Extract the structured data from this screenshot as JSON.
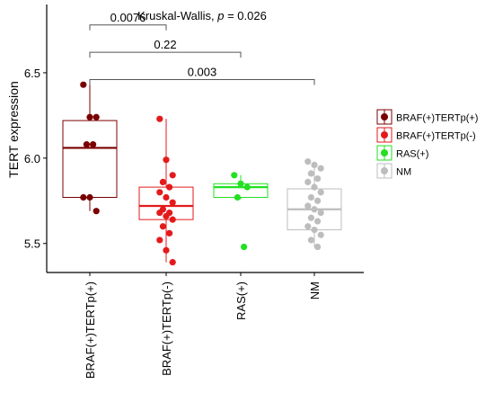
{
  "chart_data": {
    "type": "boxplot",
    "title": "Kruskal-Wallis, p = 0.026",
    "title_parts": {
      "prefix": "Kruskal-Wallis, ",
      "p": "p",
      "suffix": " = 0.026"
    },
    "xlabel": "",
    "ylabel": "TERT expression",
    "ylim": [
      5.33,
      6.9
    ],
    "yticks": [
      5.5,
      6.0,
      6.5
    ],
    "ytick_labels": [
      "5.5",
      "6.0",
      "6.5"
    ],
    "grid": false,
    "legend_position": "right",
    "categories": [
      "BRAF(+)TERTp(+)",
      "BRAF(+)TERTp(-)",
      "RAS(+)",
      "NM"
    ],
    "series": [
      {
        "name": "BRAF(+)TERTp(+)",
        "color": "#7a0000",
        "box": {
          "q1": 5.77,
          "median": 6.06,
          "q3": 6.22,
          "whisker_low": 5.69,
          "whisker_high": 6.43
        },
        "points": [
          6.43,
          6.24,
          6.24,
          6.08,
          6.08,
          5.77,
          5.77,
          5.69
        ]
      },
      {
        "name": "BRAF(+)TERTp(-)",
        "color": "#e31a1c",
        "box": {
          "q1": 5.64,
          "median": 5.72,
          "q3": 5.83,
          "whisker_low": 5.39,
          "whisker_high": 6.23
        },
        "points": [
          6.23,
          5.99,
          5.9,
          5.86,
          5.83,
          5.8,
          5.77,
          5.74,
          5.7,
          5.68,
          5.68,
          5.66,
          5.64,
          5.6,
          5.56,
          5.52,
          5.46,
          5.39
        ]
      },
      {
        "name": "RAS(+)",
        "color": "#22e022",
        "box": {
          "q1": 5.77,
          "median": 5.83,
          "q3": 5.85,
          "whisker_low": 5.76,
          "whisker_high": 5.9
        },
        "points": [
          5.9,
          5.85,
          5.83,
          5.77,
          5.48
        ]
      },
      {
        "name": "NM",
        "color": "#bdbdbd",
        "box": {
          "q1": 5.58,
          "median": 5.7,
          "q3": 5.82,
          "whisker_low": 5.48,
          "whisker_high": 5.98
        },
        "points": [
          5.98,
          5.96,
          5.94,
          5.91,
          5.88,
          5.86,
          5.83,
          5.8,
          5.77,
          5.75,
          5.72,
          5.7,
          5.68,
          5.65,
          5.63,
          5.6,
          5.58,
          5.55,
          5.52,
          5.48
        ]
      }
    ],
    "comparisons": [
      {
        "from": 0,
        "to": 1,
        "label": "0.0076",
        "y": 6.78
      },
      {
        "from": 0,
        "to": 2,
        "label": "0.22",
        "y": 6.62
      },
      {
        "from": 0,
        "to": 3,
        "label": "0.003",
        "y": 6.46
      }
    ]
  }
}
